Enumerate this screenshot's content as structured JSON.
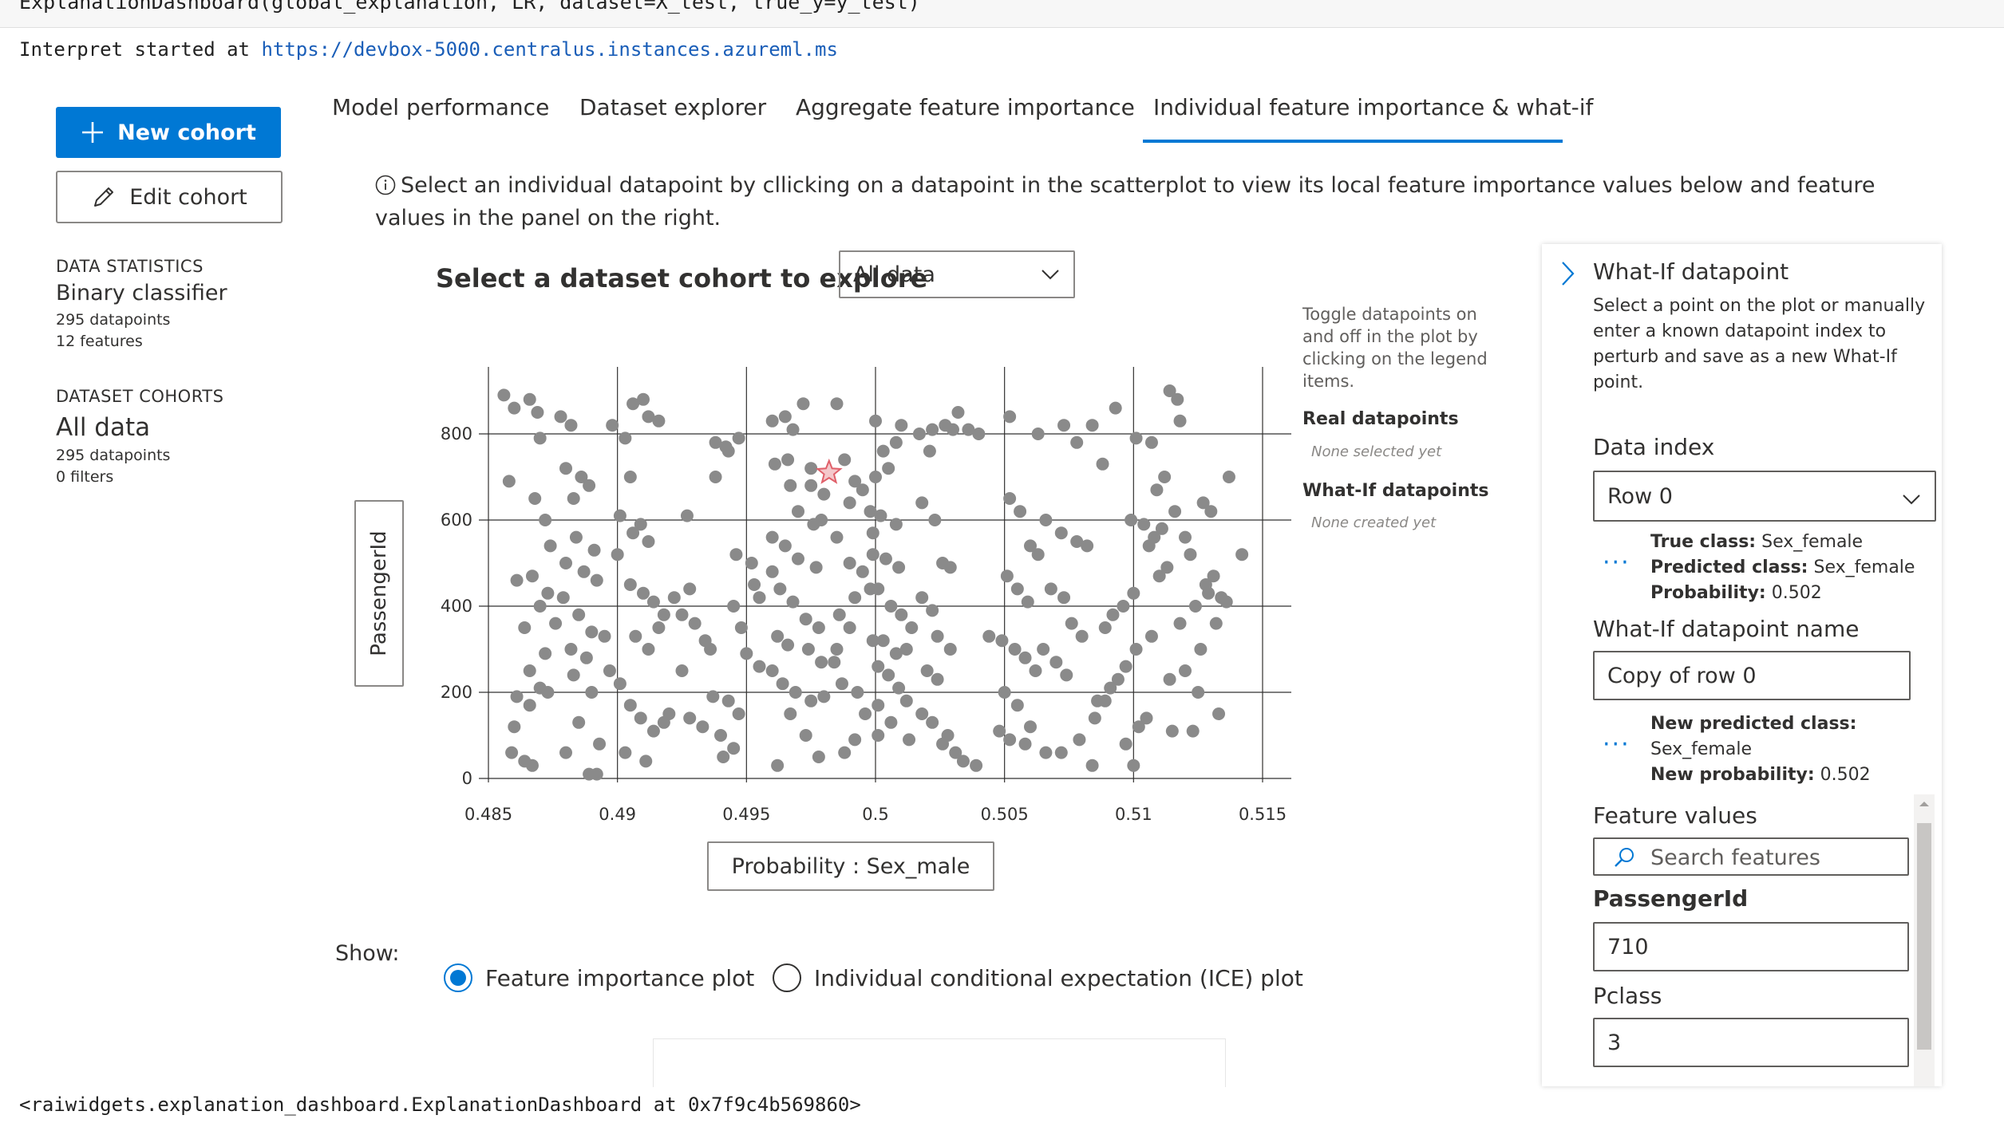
{
  "notebook": {
    "code_line": "ExplanationDashboard(global_explanation, LR, dataset=X_test, true_y=y_test)",
    "interpret_prefix": "Interpret started at ",
    "interpret_url": "https://devbox-5000.centralus.instances.azureml.ms",
    "repr_line": "<raiwidgets.explanation_dashboard.ExplanationDashboard at 0x7f9c4b569860>"
  },
  "sidebar": {
    "new_cohort_label": "New cohort",
    "edit_cohort_label": "Edit cohort",
    "data_statistics_header": "DATA STATISTICS",
    "classifier_type": "Binary classifier",
    "datapoints": "295 datapoints",
    "features": "12 features",
    "dataset_cohorts_header": "DATASET COHORTS",
    "cohort_name": "All data",
    "cohort_datapoints": "295 datapoints",
    "cohort_filters": "0 filters"
  },
  "tabs": [
    {
      "label": "Model performance"
    },
    {
      "label": "Dataset explorer"
    },
    {
      "label": "Aggregate feature importance"
    },
    {
      "label": "Individual feature importance & what-if",
      "active": true
    }
  ],
  "main": {
    "info_text": "Select an individual datapoint by cllicking on a datapoint in the scatterplot to view its local feature importance values below and feature values in the panel on the right.",
    "cohort_select_label": "Select a dataset cohort to explore",
    "cohort_select_value": "All data",
    "y_axis_button": "PassengerId",
    "x_axis_button": "Probability : Sex_male",
    "legend_help": "Toggle datapoints on and off in the plot by clicking on the legend items.",
    "legend_real_title": "Real datapoints",
    "legend_real_empty": "None selected yet",
    "legend_whatif_title": "What-If datapoints",
    "legend_whatif_empty": "None created yet",
    "show_label": "Show:",
    "radio_feature_importance": "Feature importance plot",
    "radio_ice": "Individual conditional expectation (ICE) plot"
  },
  "whatif": {
    "title": "What-If datapoint",
    "description": "Select a point on the plot or manually enter a known datapoint index to perturb and save as a new What-If point.",
    "data_index_label": "Data index",
    "data_index_value": "Row 0",
    "true_class_label": "True class:",
    "true_class_value": "Sex_female",
    "predicted_class_label": "Predicted class:",
    "predicted_class_value": "Sex_female",
    "probability_label": "Probability:",
    "probability_value": "0.502",
    "name_label": "What-If datapoint name",
    "name_value": "Copy of row 0",
    "new_predicted_label": "New predicted class:",
    "new_predicted_value": "Sex_female",
    "new_probability_label": "New probability:",
    "new_probability_value": "0.502",
    "feature_values_label": "Feature values",
    "search_placeholder": "Search features",
    "features": [
      {
        "name": "PassengerId",
        "value": "710"
      },
      {
        "name": "Pclass",
        "value": "3"
      }
    ]
  },
  "colors": {
    "accent": "#0078d4",
    "point": "#8a8a8a",
    "selected_star": "#e0606a"
  },
  "chart_data": {
    "type": "scatter",
    "xlabel": "Probability : Sex_male",
    "ylabel": "PassengerId",
    "xlim": [
      0.485,
      0.515
    ],
    "ylim": [
      0,
      900
    ],
    "x_ticks": [
      "0.485",
      "0.49",
      "0.495",
      "0.5",
      "0.505",
      "0.51",
      "0.515"
    ],
    "y_ticks": [
      "0",
      "200",
      "400",
      "600",
      "800"
    ],
    "grid": true,
    "selected_point": {
      "x": 0.4982,
      "y": 710
    },
    "points": [
      [
        0.4856,
        890
      ],
      [
        0.486,
        860
      ],
      [
        0.4866,
        880
      ],
      [
        0.4869,
        850
      ],
      [
        0.487,
        790
      ],
      [
        0.4858,
        690
      ],
      [
        0.4868,
        650
      ],
      [
        0.4872,
        600
      ],
      [
        0.4874,
        540
      ],
      [
        0.4861,
        460
      ],
      [
        0.4867,
        470
      ],
      [
        0.4873,
        430
      ],
      [
        0.487,
        400
      ],
      [
        0.4864,
        350
      ],
      [
        0.4876,
        360
      ],
      [
        0.4872,
        290
      ],
      [
        0.4866,
        250
      ],
      [
        0.487,
        210
      ],
      [
        0.4861,
        190
      ],
      [
        0.4866,
        170
      ],
      [
        0.4873,
        200
      ],
      [
        0.486,
        120
      ],
      [
        0.4864,
        40
      ],
      [
        0.4867,
        30
      ],
      [
        0.4859,
        60
      ],
      [
        0.4878,
        840
      ],
      [
        0.4882,
        820
      ],
      [
        0.488,
        720
      ],
      [
        0.4886,
        700
      ],
      [
        0.4883,
        650
      ],
      [
        0.4889,
        680
      ],
      [
        0.4884,
        560
      ],
      [
        0.4891,
        530
      ],
      [
        0.488,
        500
      ],
      [
        0.4887,
        480
      ],
      [
        0.4892,
        460
      ],
      [
        0.4879,
        420
      ],
      [
        0.4885,
        380
      ],
      [
        0.489,
        340
      ],
      [
        0.4882,
        300
      ],
      [
        0.4888,
        280
      ],
      [
        0.4895,
        330
      ],
      [
        0.4883,
        240
      ],
      [
        0.489,
        200
      ],
      [
        0.4897,
        250
      ],
      [
        0.4885,
        130
      ],
      [
        0.4893,
        80
      ],
      [
        0.488,
        60
      ],
      [
        0.4889,
        10
      ],
      [
        0.4892,
        10
      ],
      [
        0.4898,
        820
      ],
      [
        0.4903,
        790
      ],
      [
        0.4906,
        870
      ],
      [
        0.491,
        880
      ],
      [
        0.4912,
        840
      ],
      [
        0.4916,
        830
      ],
      [
        0.4905,
        700
      ],
      [
        0.4901,
        610
      ],
      [
        0.4906,
        570
      ],
      [
        0.4909,
        590
      ],
      [
        0.4912,
        550
      ],
      [
        0.49,
        520
      ],
      [
        0.4905,
        450
      ],
      [
        0.491,
        430
      ],
      [
        0.4914,
        410
      ],
      [
        0.4918,
        380
      ],
      [
        0.4907,
        330
      ],
      [
        0.4912,
        300
      ],
      [
        0.4916,
        350
      ],
      [
        0.4901,
        220
      ],
      [
        0.4905,
        170
      ],
      [
        0.4909,
        140
      ],
      [
        0.4914,
        110
      ],
      [
        0.4918,
        130
      ],
      [
        0.4903,
        60
      ],
      [
        0.4911,
        40
      ],
      [
        0.4922,
        420
      ],
      [
        0.4928,
        440
      ],
      [
        0.4925,
        380
      ],
      [
        0.493,
        360
      ],
      [
        0.4934,
        320
      ],
      [
        0.4936,
        300
      ],
      [
        0.4925,
        250
      ],
      [
        0.492,
        150
      ],
      [
        0.4928,
        140
      ],
      [
        0.4933,
        120
      ],
      [
        0.4937,
        190
      ],
      [
        0.4927,
        610
      ],
      [
        0.4938,
        780
      ],
      [
        0.4942,
        770
      ],
      [
        0.4947,
        790
      ],
      [
        0.4938,
        700
      ],
      [
        0.4943,
        760
      ],
      [
        0.4946,
        520
      ],
      [
        0.4952,
        500
      ],
      [
        0.4953,
        450
      ],
      [
        0.4955,
        420
      ],
      [
        0.4945,
        400
      ],
      [
        0.4948,
        350
      ],
      [
        0.495,
        290
      ],
      [
        0.4955,
        260
      ],
      [
        0.4943,
        180
      ],
      [
        0.4947,
        150
      ],
      [
        0.494,
        100
      ],
      [
        0.4945,
        70
      ],
      [
        0.4941,
        50
      ],
      [
        0.496,
        830
      ],
      [
        0.4965,
        840
      ],
      [
        0.4972,
        870
      ],
      [
        0.4968,
        810
      ],
      [
        0.4961,
        730
      ],
      [
        0.4966,
        740
      ],
      [
        0.4967,
        680
      ],
      [
        0.497,
        620
      ],
      [
        0.4976,
        590
      ],
      [
        0.4979,
        600
      ],
      [
        0.496,
        560
      ],
      [
        0.4965,
        540
      ],
      [
        0.497,
        510
      ],
      [
        0.4977,
        490
      ],
      [
        0.496,
        480
      ],
      [
        0.4963,
        440
      ],
      [
        0.4968,
        410
      ],
      [
        0.4973,
        370
      ],
      [
        0.4978,
        350
      ],
      [
        0.4962,
        330
      ],
      [
        0.4966,
        310
      ],
      [
        0.4974,
        300
      ],
      [
        0.4979,
        270
      ],
      [
        0.4985,
        300
      ],
      [
        0.496,
        250
      ],
      [
        0.4964,
        220
      ],
      [
        0.4969,
        200
      ],
      [
        0.4975,
        180
      ],
      [
        0.498,
        190
      ],
      [
        0.4967,
        150
      ],
      [
        0.4973,
        100
      ],
      [
        0.4978,
        50
      ],
      [
        0.4962,
        30
      ],
      [
        0.4975,
        720
      ],
      [
        0.4985,
        870
      ],
      [
        0.4988,
        740
      ],
      [
        0.4992,
        690
      ],
      [
        0.4995,
        670
      ],
      [
        0.499,
        640
      ],
      [
        0.4998,
        620
      ],
      [
        0.4985,
        560
      ],
      [
        0.499,
        500
      ],
      [
        0.4995,
        480
      ],
      [
        0.4999,
        520
      ],
      [
        0.4992,
        420
      ],
      [
        0.4998,
        440
      ],
      [
        0.4986,
        380
      ],
      [
        0.499,
        350
      ],
      [
        0.4999,
        320
      ],
      [
        0.4984,
        270
      ],
      [
        0.4987,
        220
      ],
      [
        0.4993,
        200
      ],
      [
        0.4996,
        150
      ],
      [
        0.4992,
        90
      ],
      [
        0.4988,
        60
      ],
      [
        0.4999,
        570
      ],
      [
        0.4975,
        680
      ],
      [
        0.498,
        660
      ],
      [
        0.5,
        830
      ],
      [
        0.5003,
        760
      ],
      [
        0.5008,
        780
      ],
      [
        0.501,
        820
      ],
      [
        0.5,
        700
      ],
      [
        0.5005,
        720
      ],
      [
        0.5002,
        610
      ],
      [
        0.5008,
        590
      ],
      [
        0.5004,
        510
      ],
      [
        0.5009,
        490
      ],
      [
        0.5001,
        440
      ],
      [
        0.5006,
        400
      ],
      [
        0.501,
        380
      ],
      [
        0.5014,
        350
      ],
      [
        0.5003,
        320
      ],
      [
        0.5008,
        290
      ],
      [
        0.5012,
        300
      ],
      [
        0.5001,
        260
      ],
      [
        0.5005,
        240
      ],
      [
        0.5009,
        210
      ],
      [
        0.5012,
        180
      ],
      [
        0.5001,
        170
      ],
      [
        0.5006,
        130
      ],
      [
        0.5013,
        90
      ],
      [
        0.5001,
        100
      ],
      [
        0.5017,
        800
      ],
      [
        0.5022,
        810
      ],
      [
        0.5027,
        820
      ],
      [
        0.503,
        810
      ],
      [
        0.5021,
        760
      ],
      [
        0.5018,
        640
      ],
      [
        0.5023,
        600
      ],
      [
        0.5026,
        500
      ],
      [
        0.5029,
        490
      ],
      [
        0.5018,
        420
      ],
      [
        0.5022,
        390
      ],
      [
        0.5024,
        330
      ],
      [
        0.5029,
        300
      ],
      [
        0.502,
        250
      ],
      [
        0.5024,
        230
      ],
      [
        0.5018,
        150
      ],
      [
        0.5022,
        130
      ],
      [
        0.5026,
        80
      ],
      [
        0.5031,
        60
      ],
      [
        0.5028,
        100
      ],
      [
        0.5032,
        850
      ],
      [
        0.504,
        800
      ],
      [
        0.5052,
        840
      ],
      [
        0.5063,
        800
      ],
      [
        0.5036,
        810
      ],
      [
        0.5052,
        650
      ],
      [
        0.5056,
        620
      ],
      [
        0.506,
        540
      ],
      [
        0.5063,
        520
      ],
      [
        0.5051,
        470
      ],
      [
        0.5055,
        440
      ],
      [
        0.5059,
        410
      ],
      [
        0.5049,
        320
      ],
      [
        0.5054,
        300
      ],
      [
        0.5058,
        280
      ],
      [
        0.5062,
        250
      ],
      [
        0.505,
        200
      ],
      [
        0.5055,
        170
      ],
      [
        0.5048,
        110
      ],
      [
        0.5052,
        90
      ],
      [
        0.5058,
        80
      ],
      [
        0.5044,
        330
      ],
      [
        0.5034,
        40
      ],
      [
        0.5039,
        30
      ],
      [
        0.506,
        120
      ],
      [
        0.5073,
        820
      ],
      [
        0.5078,
        780
      ],
      [
        0.5084,
        820
      ],
      [
        0.5088,
        730
      ],
      [
        0.5066,
        600
      ],
      [
        0.5072,
        570
      ],
      [
        0.5078,
        550
      ],
      [
        0.5082,
        540
      ],
      [
        0.5068,
        440
      ],
      [
        0.5073,
        420
      ],
      [
        0.5076,
        360
      ],
      [
        0.508,
        330
      ],
      [
        0.5065,
        300
      ],
      [
        0.507,
        270
      ],
      [
        0.5074,
        240
      ],
      [
        0.5086,
        180
      ],
      [
        0.5066,
        60
      ],
      [
        0.5072,
        60
      ],
      [
        0.5084,
        30
      ],
      [
        0.5079,
        90
      ],
      [
        0.5093,
        860
      ],
      [
        0.5101,
        790
      ],
      [
        0.5107,
        780
      ],
      [
        0.5099,
        600
      ],
      [
        0.5104,
        590
      ],
      [
        0.5108,
        560
      ],
      [
        0.5111,
        580
      ],
      [
        0.5106,
        540
      ],
      [
        0.51,
        430
      ],
      [
        0.5096,
        400
      ],
      [
        0.5092,
        380
      ],
      [
        0.5089,
        350
      ],
      [
        0.5107,
        330
      ],
      [
        0.5101,
        300
      ],
      [
        0.5097,
        260
      ],
      [
        0.5094,
        230
      ],
      [
        0.5091,
        210
      ],
      [
        0.5089,
        180
      ],
      [
        0.5085,
        140
      ],
      [
        0.5102,
        120
      ],
      [
        0.5097,
        80
      ],
      [
        0.51,
        30
      ],
      [
        0.5114,
        900
      ],
      [
        0.5117,
        880
      ],
      [
        0.5118,
        830
      ],
      [
        0.5112,
        700
      ],
      [
        0.5109,
        670
      ],
      [
        0.5116,
        620
      ],
      [
        0.512,
        560
      ],
      [
        0.5122,
        520
      ],
      [
        0.5113,
        490
      ],
      [
        0.5124,
        400
      ],
      [
        0.5129,
        430
      ],
      [
        0.5118,
        360
      ],
      [
        0.5126,
        300
      ],
      [
        0.512,
        250
      ],
      [
        0.5114,
        230
      ],
      [
        0.5125,
        200
      ],
      [
        0.5133,
        150
      ],
      [
        0.513,
        620
      ],
      [
        0.5127,
        640
      ],
      [
        0.5128,
        450
      ],
      [
        0.5131,
        470
      ],
      [
        0.5134,
        420
      ],
      [
        0.5137,
        700
      ],
      [
        0.5142,
        520
      ],
      [
        0.5136,
        410
      ],
      [
        0.5132,
        360
      ],
      [
        0.511,
        470
      ],
      [
        0.5115,
        110
      ],
      [
        0.5105,
        140
      ],
      [
        0.5123,
        110
      ]
    ]
  }
}
